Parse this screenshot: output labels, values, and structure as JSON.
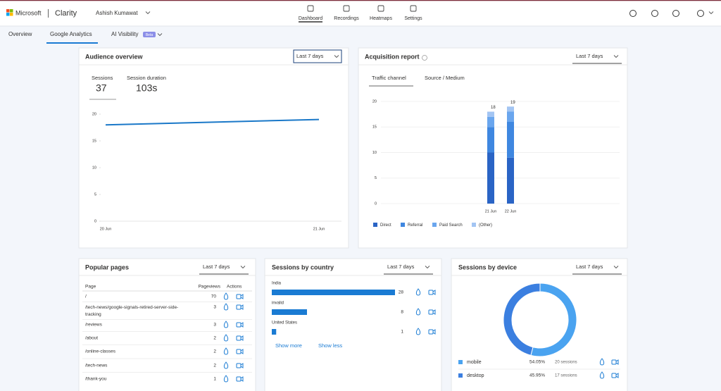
{
  "header": {
    "brand": "Microsoft",
    "product": "Clarity",
    "user": "Ashish Kumawat",
    "nav": [
      "Dashboard",
      "Recordings",
      "Heatmaps",
      "Settings"
    ]
  },
  "subnav": {
    "tabs": [
      "Overview",
      "Google Analytics",
      "AI Visibility"
    ],
    "badge": "Beta"
  },
  "audience_overview": {
    "title": "Audience overview",
    "range": "Last 7 days",
    "metrics": [
      {
        "label": "Sessions",
        "value": 37
      },
      {
        "label": "Session duration",
        "value": "103s"
      }
    ]
  },
  "acquisition_report": {
    "title": "Acquisition report",
    "range": "Last 7 days",
    "tabs": [
      "Traffic channel",
      "Source / Medium"
    ]
  },
  "popular_pages": {
    "title": "Popular pages",
    "range": "Last 7 days",
    "columns": [
      "Page",
      "Pageviews",
      "Actions"
    ],
    "rows": [
      [
        "/",
        70
      ],
      [
        "/tech-news/google-signals-retired-server-side-tracking",
        3
      ],
      [
        "/reviews",
        3
      ],
      [
        "/about",
        2
      ],
      [
        "/online-classes",
        2
      ],
      [
        "/tech-news",
        2
      ],
      [
        "/thank-you",
        1
      ]
    ]
  },
  "sessions_by_country": {
    "title": "Sessions by country",
    "range": "Last 7 days",
    "links": [
      "Show more",
      "Show less"
    ]
  },
  "sessions_by_device": {
    "title": "Sessions by device",
    "range": "Last 7 days"
  },
  "chart_data": [
    {
      "type": "line",
      "categories": [
        "20 Jun",
        "21 Jun"
      ],
      "values": [
        18,
        19
      ],
      "color": "#1a78c8",
      "ylim": [
        0,
        20
      ],
      "yticks": [
        0,
        5,
        10,
        15,
        20
      ]
    },
    {
      "type": "stacked_bar",
      "categories": [
        "21 Jun",
        "22 Jun"
      ],
      "totals": [
        18,
        19
      ],
      "series": [
        {
          "name": "Direct",
          "color": "#2a64c5",
          "values": [
            10,
            9
          ]
        },
        {
          "name": "Referral",
          "color": "#3f87e0",
          "values": [
            5,
            7
          ]
        },
        {
          "name": "Paid Search",
          "color": "#6aa6ee",
          "values": [
            2,
            2
          ]
        },
        {
          "name": "(Other)",
          "color": "#a3c5f3",
          "values": [
            1,
            1
          ]
        }
      ],
      "ylim": [
        0,
        20
      ],
      "yticks": [
        0,
        5,
        10,
        15,
        20
      ],
      "legend": "bottom"
    },
    {
      "type": "hbar",
      "categories": [
        "India",
        "invalid",
        "United States"
      ],
      "values": [
        28,
        8,
        1
      ],
      "color": "#1a7bd3"
    },
    {
      "type": "donut",
      "categories": [
        "mobile",
        "desktop"
      ],
      "values": [
        54.05,
        45.95
      ],
      "value_labels": [
        "54.05%",
        "45.95%"
      ],
      "session_labels": [
        "20 sessions",
        "17 sessions"
      ],
      "colors": [
        "#4aa3f0",
        "#3b7fe0"
      ]
    }
  ]
}
